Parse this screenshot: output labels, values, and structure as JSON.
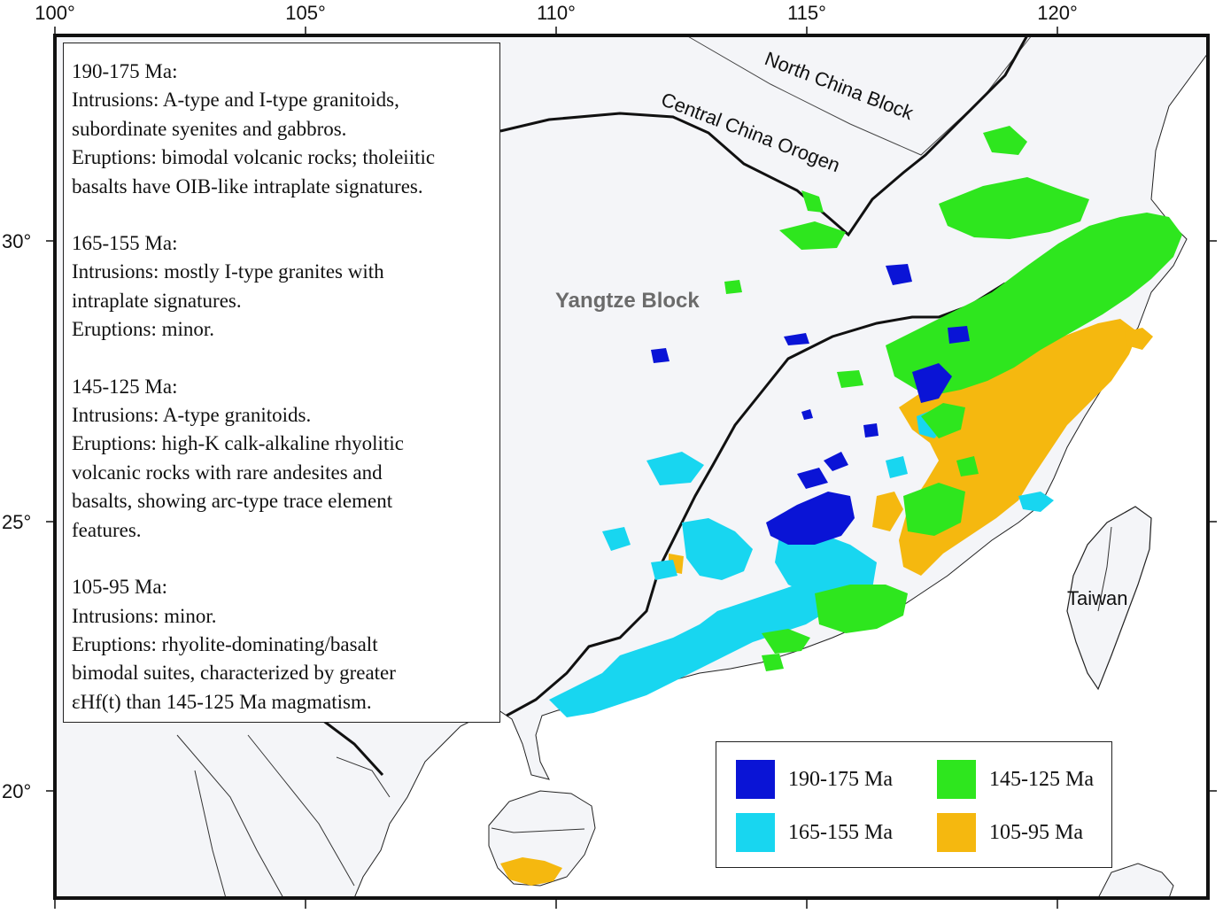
{
  "map": {
    "longitude_ticks": [
      "100°",
      "105°",
      "110°",
      "115°",
      "120°"
    ],
    "latitude_ticks": [
      "30°",
      "25°",
      "20°"
    ],
    "region_labels": {
      "north_china": "North China Block",
      "central_china": "Central China Orogen",
      "yangtze": "Yangtze Block",
      "taiwan": "Taiwan"
    }
  },
  "info_box": {
    "blocks": [
      {
        "heading": "190-175 Ma:",
        "lines": [
          "Intrusions: A-type and I-type granitoids,",
          "subordinate syenites and gabbros.",
          "Eruptions: bimodal volcanic rocks; tholeiitic",
          "basalts have OIB-like intraplate signatures."
        ]
      },
      {
        "heading": "165-155 Ma:",
        "lines": [
          "Intrusions: mostly I-type granites with",
          "intraplate signatures.",
          "Eruptions: minor."
        ]
      },
      {
        "heading": "145-125 Ma:",
        "lines": [
          "Intrusions: A-type granitoids.",
          "Eruptions: high-K calk-alkaline rhyolitic",
          "volcanic rocks with rare andesites and",
          "basalts, showing arc-type trace element",
          "features."
        ]
      },
      {
        "heading": "105-95 Ma:",
        "lines": [
          "Intrusions: minor.",
          "Eruptions: rhyolite-dominating/basalt",
          "bimodal suites, characterized by greater",
          "εHf(t) than 145-125 Ma magmatism."
        ]
      }
    ]
  },
  "legend": {
    "items": [
      {
        "label": "190-175 Ma",
        "color": "#0a14d6"
      },
      {
        "label": "145-125 Ma",
        "color": "#2ee61e"
      },
      {
        "label": "165-155 Ma",
        "color": "#18d6f0"
      },
      {
        "label": "105-95 Ma",
        "color": "#f5b80f"
      }
    ]
  },
  "colors": {
    "land": "#f4f5f8",
    "sea": "#ffffff",
    "boundary": "#111111",
    "faint_line": "#444444"
  }
}
